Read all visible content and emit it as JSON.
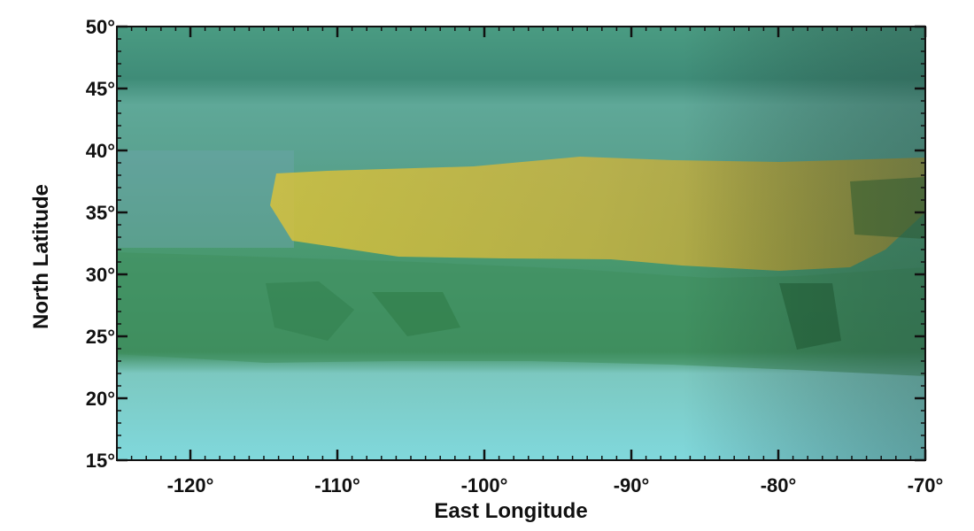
{
  "map": {
    "xlabel": "East Longitude",
    "ylabel": "North Latitude",
    "lon_range": [
      -125,
      -70
    ],
    "lat_range": [
      15,
      50
    ],
    "x_ticks": [
      {
        "value": -120,
        "label": "-120°"
      },
      {
        "value": -110,
        "label": "-110°"
      },
      {
        "value": -100,
        "label": "-100°"
      },
      {
        "value": -90,
        "label": "-90°"
      },
      {
        "value": -80,
        "label": "-80°"
      },
      {
        "value": -70,
        "label": "-70°"
      }
    ],
    "y_ticks": [
      {
        "value": 15,
        "label": "15°"
      },
      {
        "value": 20,
        "label": "20°"
      },
      {
        "value": 25,
        "label": "25°"
      },
      {
        "value": 30,
        "label": "30°"
      },
      {
        "value": 35,
        "label": "35°"
      },
      {
        "value": 40,
        "label": "40°"
      },
      {
        "value": 45,
        "label": "45°"
      },
      {
        "value": 50,
        "label": "50°"
      }
    ],
    "colors": {
      "ocean_north": "#3f8f78",
      "ocean_mid": "#5ea394",
      "land_green": "#3f8f5a",
      "land_yellow": "#c9b93f",
      "ocean_south": "#78cfd2",
      "frame": "#111111"
    }
  }
}
